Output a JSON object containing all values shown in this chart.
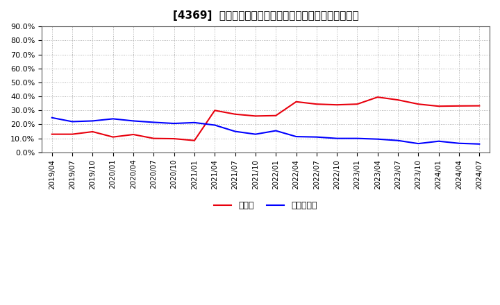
{
  "title": "[4369]  現預金、有利子負債の総資産に対する比率の推移",
  "x_labels": [
    "2019/04",
    "2019/07",
    "2019/10",
    "2020/01",
    "2020/04",
    "2020/07",
    "2020/10",
    "2021/01",
    "2021/04",
    "2021/07",
    "2021/10",
    "2022/01",
    "2022/04",
    "2022/07",
    "2022/10",
    "2023/01",
    "2023/04",
    "2023/07",
    "2023/10",
    "2024/01",
    "2024/04",
    "2024/07"
  ],
  "cash": [
    0.13,
    0.13,
    0.148,
    0.11,
    0.128,
    0.1,
    0.098,
    0.085,
    0.3,
    0.273,
    0.26,
    0.263,
    0.362,
    0.345,
    0.34,
    0.345,
    0.395,
    0.375,
    0.345,
    0.33,
    0.332,
    0.333
  ],
  "debt": [
    0.248,
    0.22,
    0.225,
    0.24,
    0.225,
    0.215,
    0.207,
    0.213,
    0.195,
    0.15,
    0.13,
    0.155,
    0.113,
    0.11,
    0.1,
    0.1,
    0.095,
    0.085,
    0.063,
    0.08,
    0.065,
    0.06
  ],
  "cash_color": "#e8000d",
  "debt_color": "#0000ff",
  "ylim": [
    0.0,
    0.9
  ],
  "yticks": [
    0.0,
    0.1,
    0.2,
    0.3,
    0.4,
    0.5,
    0.6,
    0.7,
    0.8,
    0.9
  ],
  "legend_cash": "現預金",
  "legend_debt": "有利子負債",
  "bg_color": "#ffffff",
  "plot_bg_color": "#ffffff",
  "grid_color": "#aaaaaa"
}
